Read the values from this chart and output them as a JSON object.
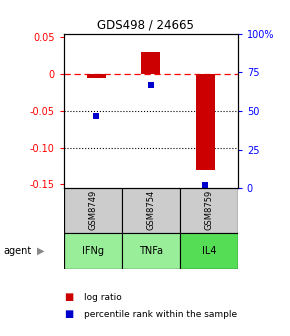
{
  "title": "GDS498 / 24665",
  "samples": [
    "GSM8749",
    "GSM8754",
    "GSM8759"
  ],
  "agents": [
    "IFNg",
    "TNFa",
    "IL4"
  ],
  "log_ratios": [
    -0.005,
    0.03,
    -0.13
  ],
  "percentile_ranks": [
    47,
    67,
    2
  ],
  "ylim_left": [
    -0.155,
    0.055
  ],
  "ylim_right": [
    0,
    100
  ],
  "yticks_left": [
    0.05,
    0.0,
    -0.05,
    -0.1,
    -0.15
  ],
  "yticks_right": [
    100,
    75,
    50,
    25,
    0
  ],
  "ytick_labels_left": [
    "0.05",
    "0",
    "-0.05",
    "-0.10",
    "-0.15"
  ],
  "ytick_labels_right": [
    "100%",
    "75",
    "50",
    "25",
    "0"
  ],
  "hlines_dotted": [
    -0.05,
    -0.1
  ],
  "hline_dashed": 0.0,
  "bar_color": "#cc0000",
  "square_color": "#0000cc",
  "bar_width": 0.35,
  "sample_box_color": "#cccccc",
  "agent_box_color": "#99ee99",
  "agent_box_color_il4": "#55dd55",
  "legend_bar_label": "log ratio",
  "legend_sq_label": "percentile rank within the sample",
  "agent_label": "agent"
}
